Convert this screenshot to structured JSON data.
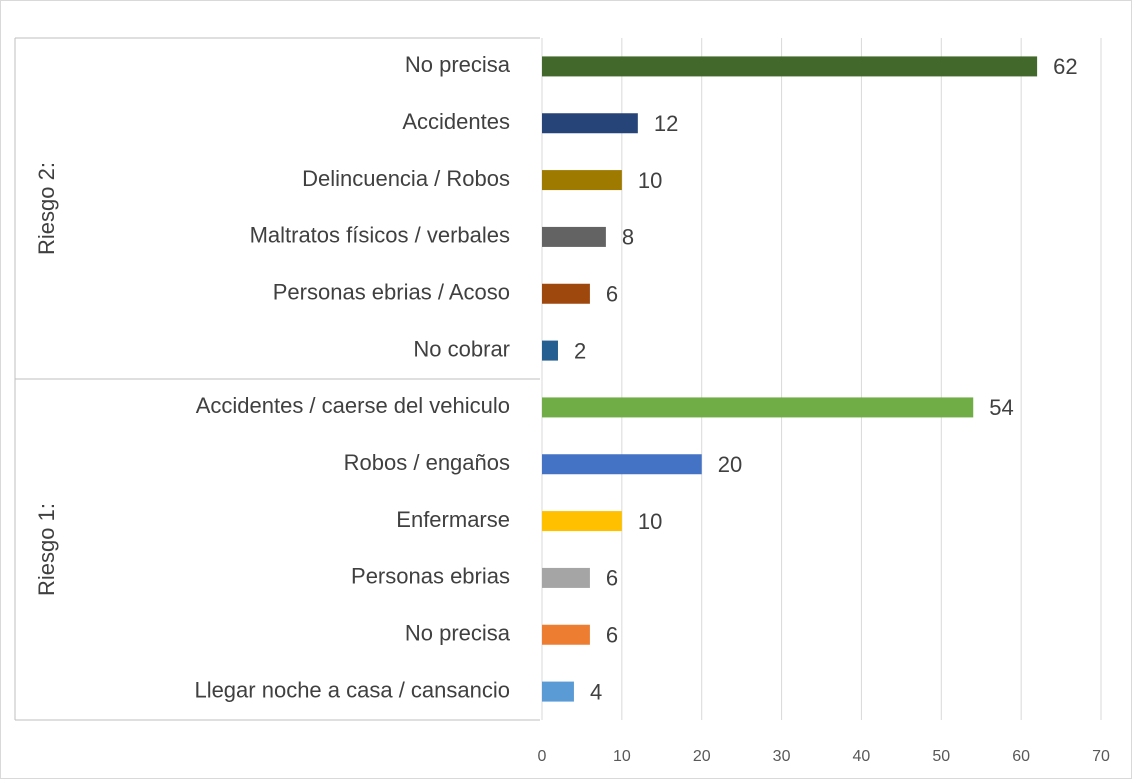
{
  "chart_data": {
    "type": "bar",
    "orientation": "horizontal",
    "groups": [
      {
        "name": "Riesgo 2:",
        "categories": [
          "No precisa",
          "Accidentes",
          "Delincuencia / Robos",
          "Maltratos físicos / verbales",
          "Personas ebrias / Acoso",
          "No cobrar"
        ],
        "values": [
          62,
          12,
          10,
          8,
          6,
          2
        ],
        "colors": [
          "#43682b",
          "#264478",
          "#9e7b00",
          "#636363",
          "#9e480e",
          "#255e91"
        ]
      },
      {
        "name": "Riesgo 1:",
        "categories": [
          "Accidentes / caerse del vehiculo",
          "Robos / engaños",
          "Enfermarse",
          "Personas ebrias",
          "No precisa",
          "Llegar noche a casa / cansancio"
        ],
        "values": [
          54,
          20,
          10,
          6,
          6,
          4
        ],
        "colors": [
          "#70ad47",
          "#4472c4",
          "#ffc000",
          "#a5a5a5",
          "#ed7d31",
          "#5b9bd5"
        ]
      }
    ],
    "xlim": [
      0,
      70
    ],
    "xticks": [
      0,
      10,
      20,
      30,
      40,
      50,
      60,
      70
    ],
    "grid": true
  }
}
